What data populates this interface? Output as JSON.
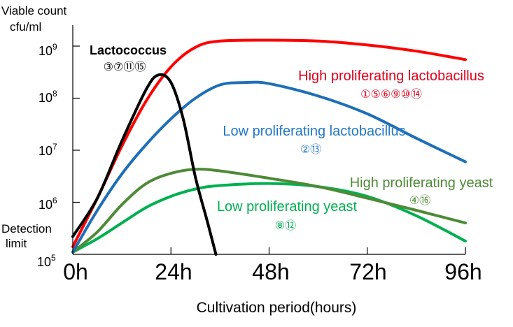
{
  "chart_data": {
    "type": "line",
    "ylabel_line1": "Viable count",
    "ylabel_line2": "cfu/ml",
    "xlabel": "Cultivation period(hours)",
    "y_scale": "log",
    "ylim": [
      100000,
      2000000000
    ],
    "xlim": [
      0,
      96
    ],
    "x_ticks": [
      {
        "value": 0,
        "label": "0h"
      },
      {
        "value": 24,
        "label": "24h"
      },
      {
        "value": 48,
        "label": "48h"
      },
      {
        "value": 72,
        "label": "72h"
      },
      {
        "value": 96,
        "label": "96h"
      }
    ],
    "y_ticks": [
      {
        "value": 100000,
        "base": "10",
        "exp": "5"
      },
      {
        "value": 1000000,
        "base": "10",
        "exp": "6"
      },
      {
        "value": 10000000,
        "base": "10",
        "exp": "7"
      },
      {
        "value": 100000000,
        "base": "10",
        "exp": "8"
      },
      {
        "value": 1000000000,
        "base": "10",
        "exp": "9"
      }
    ],
    "detection_limit_line1": "Detection",
    "detection_limit_line2": "limit",
    "grid": false,
    "series": [
      {
        "name": "Lactococcus",
        "ids": "③⑦⑪⑮",
        "color": "#000000",
        "label_color": "#000000",
        "points": [
          [
            0,
            220000
          ],
          [
            6,
            1200000
          ],
          [
            12,
            15000000
          ],
          [
            18,
            150000000
          ],
          [
            21,
            280000000
          ],
          [
            24,
            200000000
          ],
          [
            27,
            40000000
          ],
          [
            30,
            3000000
          ],
          [
            33,
            400000
          ],
          [
            35,
            100000
          ]
        ]
      },
      {
        "name": "High proliferating lactobacillus",
        "ids": "①⑤⑥⑨⑩⑭",
        "color": "#ff0000",
        "label_color": "#e0001b",
        "points": [
          [
            0,
            140000
          ],
          [
            6,
            1200000
          ],
          [
            12,
            12000000
          ],
          [
            18,
            90000000
          ],
          [
            24,
            400000000
          ],
          [
            30,
            950000000
          ],
          [
            36,
            1250000000
          ],
          [
            48,
            1300000000
          ],
          [
            60,
            1250000000
          ],
          [
            72,
            1050000000
          ],
          [
            84,
            800000000
          ],
          [
            96,
            550000000
          ]
        ]
      },
      {
        "name": "Low proliferating lactobacillus",
        "ids": "②⑬",
        "color": "#1e6fb8",
        "label_color": "#2277c8",
        "points": [
          [
            0,
            110000
          ],
          [
            6,
            700000
          ],
          [
            12,
            3500000
          ],
          [
            18,
            13000000
          ],
          [
            24,
            40000000
          ],
          [
            30,
            100000000
          ],
          [
            36,
            180000000
          ],
          [
            42,
            200000000
          ],
          [
            48,
            190000000
          ],
          [
            60,
            110000000
          ],
          [
            72,
            50000000
          ],
          [
            84,
            17000000
          ],
          [
            96,
            6000000
          ]
        ]
      },
      {
        "name": "High proliferating yeast",
        "ids": "④⑯",
        "color": "#4e8a37",
        "label_color": "#4e8a37",
        "points": [
          [
            0,
            110000
          ],
          [
            6,
            270000
          ],
          [
            12,
            900000
          ],
          [
            18,
            2300000
          ],
          [
            24,
            3600000
          ],
          [
            30,
            4300000
          ],
          [
            36,
            4000000
          ],
          [
            48,
            2900000
          ],
          [
            60,
            2000000
          ],
          [
            72,
            1200000
          ],
          [
            84,
            700000
          ],
          [
            96,
            400000
          ]
        ]
      },
      {
        "name": "Low proliferating yeast",
        "ids": "⑧⑫",
        "color": "#00b050",
        "label_color": "#00b050",
        "points": [
          [
            0,
            110000
          ],
          [
            6,
            200000
          ],
          [
            12,
            400000
          ],
          [
            18,
            800000
          ],
          [
            24,
            1300000
          ],
          [
            30,
            1800000
          ],
          [
            36,
            2100000
          ],
          [
            48,
            2300000
          ],
          [
            60,
            2000000
          ],
          [
            72,
            1300000
          ],
          [
            84,
            550000
          ],
          [
            96,
            180000
          ]
        ]
      }
    ]
  }
}
